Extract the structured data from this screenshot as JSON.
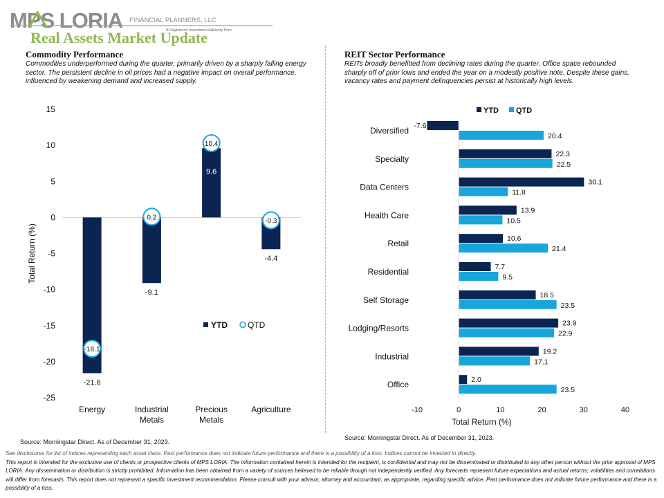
{
  "header": {
    "logo_text": "MPS LORIA",
    "logo_subtitle": "FINANCIAL PLANNERS, LLC",
    "logo_tagline": "A Registered Investment Advisory Firm",
    "title": "Real Assets Market Update"
  },
  "commodity": {
    "title": "Commodity Performance",
    "description": "Commodities underperformed during the quarter, primarily driven by a sharply falling energy sector. The persistent decline in oil prices had a negative impact on overall performance, influenced by weakening demand and increased supply.",
    "source": "Source: Morningstar Direct. As of December 31, 2023."
  },
  "reit": {
    "title": "REIT Sector Performance",
    "description": "REITs broadly benefitted from declining rates during the quarter. Office space rebounded sharply off of prior lows and ended the year on a modestly positive note. Despite these gains, vacancy rates and payment delinquencies persist at historically high levels.",
    "source": "Source: Morningstar Direct. As of December 31, 2023."
  },
  "colors": {
    "ytd": "#0b2452",
    "qtd": "#17a6dc",
    "title_green": "#8fb850"
  },
  "chart_data": [
    {
      "type": "bar",
      "categories": [
        "Energy",
        "Industrial Metals",
        "Precious Metals",
        "Agriculture"
      ],
      "series": [
        {
          "name": "YTD",
          "values": [
            -21.6,
            -9.1,
            9.6,
            -4.4
          ],
          "style": "bar"
        },
        {
          "name": "QTD",
          "values": [
            -18.1,
            0.2,
            10.4,
            -0.3
          ],
          "style": "circle-marker"
        }
      ],
      "ylabel": "Total Return (%)",
      "xlabel": "",
      "ylim": [
        -25,
        15
      ],
      "yticks": [
        15,
        10,
        5,
        0,
        -5,
        -10,
        -15,
        -20,
        -25
      ],
      "grid": false,
      "legend": "inside-lower-right"
    },
    {
      "type": "bar",
      "orientation": "horizontal",
      "categories": [
        "Diversified",
        "Specialty",
        "Data Centers",
        "Health Care",
        "Retail",
        "Residential",
        "Self Storage",
        "Lodging/Resorts",
        "Industrial",
        "Office"
      ],
      "series": [
        {
          "name": "YTD",
          "values": [
            -7.6,
            22.3,
            30.1,
            13.9,
            10.6,
            7.7,
            18.5,
            23.9,
            19.2,
            2.0
          ]
        },
        {
          "name": "QTD",
          "values": [
            20.4,
            22.5,
            11.8,
            10.5,
            21.4,
            9.5,
            23.5,
            22.9,
            17.1,
            23.5
          ]
        }
      ],
      "xlabel": "Total Return (%)",
      "ylabel": "",
      "xlim": [
        -10,
        40
      ],
      "xticks": [
        -10,
        0,
        10,
        20,
        30,
        40
      ],
      "grid": false,
      "legend": "top"
    }
  ],
  "disclosures": [
    "See disclosures for list of indices representing each asset class. Past performance does not indicate future performance and there is a possibility of a loss. Indices cannot be invested in directly.",
    "This report is intended for the exclusive use of clients or prospective clients of MPS LORIA. The information contained herein is intended for the recipient, is confidential and may not be disseminated or distributed to any other person without the prior approval of MPS LORIA. Any dissemination or distribution is strictly prohibited. Information has been obtained from a variety of sources believed to be reliable though not independently verified. Any forecasts represent future expectations and actual returns; volatilities and correlations will differ from forecasts. This report does not represent a specific investment recommendation. Please consult with your advisor, attorney and accountant, as appropriate, regarding specific advice. Past performance does not indicate future performance and there is a possibility of a loss."
  ]
}
